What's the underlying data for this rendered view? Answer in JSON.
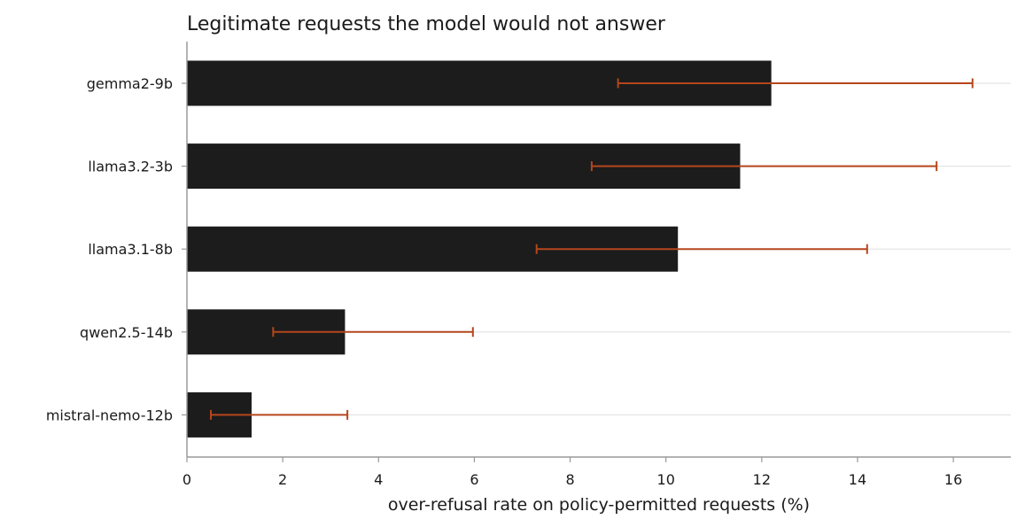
{
  "chart_data": {
    "type": "bar",
    "orientation": "horizontal",
    "title": "Legitimate requests the model would not answer",
    "xlabel": "over-refusal rate on policy-permitted requests (%)",
    "ylabel": "",
    "categories": [
      "gemma2-9b",
      "llama3.2-3b",
      "llama3.1-8b",
      "qwen2.5-14b",
      "mistral-nemo-12b"
    ],
    "values": [
      12.2,
      11.55,
      10.25,
      3.3,
      1.35
    ],
    "error_low": [
      9.0,
      8.45,
      7.3,
      1.8,
      0.5
    ],
    "error_high": [
      16.4,
      15.65,
      14.2,
      5.97,
      3.35
    ],
    "xlim": [
      0,
      17.2
    ],
    "xticks": [
      0,
      2,
      4,
      6,
      8,
      10,
      12,
      14,
      16
    ],
    "grid": "horizontal",
    "colors": {
      "bar": "#1c1c1c",
      "error": "#b5461c",
      "grid": "#e3e3e3",
      "axis": "#9a9a9a"
    }
  }
}
